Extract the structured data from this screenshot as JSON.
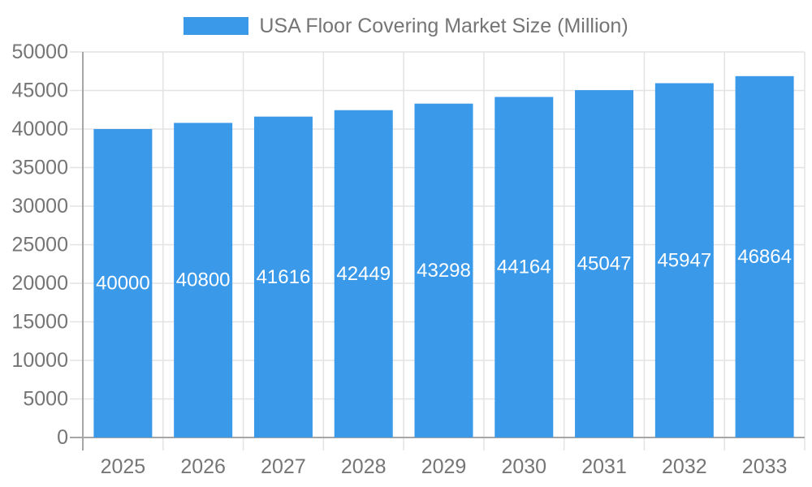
{
  "legend": {
    "label": "USA Floor Covering Market Size (Million)",
    "swatch_color": "#3B99EA"
  },
  "chart_data": {
    "type": "bar",
    "title": "USA Floor Covering Market Size (Million)",
    "categories": [
      "2025",
      "2026",
      "2027",
      "2028",
      "2029",
      "2030",
      "2031",
      "2032",
      "2033"
    ],
    "values": [
      40000,
      40800,
      41616,
      42449,
      43298,
      44164,
      45047,
      45947,
      46864
    ],
    "value_labels": [
      "40000",
      "40800",
      "41616",
      "42449",
      "43298",
      "44164",
      "45047",
      "45947",
      "46864"
    ],
    "xlabel": "",
    "ylabel": "",
    "ylim": [
      0,
      50000
    ],
    "ytick_step": 5000,
    "ytick_labels": [
      "0",
      "5000",
      "10000",
      "15000",
      "20000",
      "25000",
      "30000",
      "35000",
      "40000",
      "45000",
      "50000"
    ],
    "grid": true,
    "legend_entries": [
      "USA Floor Covering Market Size (Million)"
    ],
    "legend_position": "top-center",
    "value_labels_position": "inside-center",
    "colors": {
      "bar": "#3B99EA",
      "axis_text": "#757575",
      "legend_text": "#757575",
      "grid_line": "#E3E3E3",
      "axis_line": "#A6A6A6",
      "value_label": "#FFFFFF",
      "background": "#FFFFFF"
    }
  }
}
